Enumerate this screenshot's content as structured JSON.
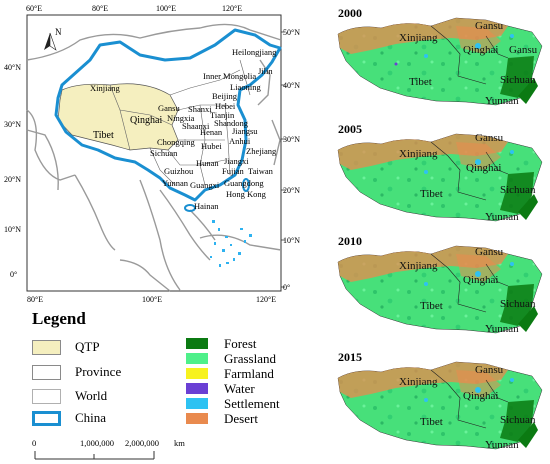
{
  "overview_map": {
    "top_ticks": [
      "60°E",
      "80°E",
      "100°E",
      "120°E"
    ],
    "bottom_ticks": [
      "80°E",
      "100°E",
      "120°E"
    ],
    "left_ticks": [
      "40°N",
      "30°N",
      "20°N",
      "10°N",
      "0°"
    ],
    "right_ticks": [
      "50°N",
      "40°N",
      "30°N",
      "20°N",
      "10°N",
      "0°"
    ],
    "north_label": "N",
    "province_labels": [
      "Heilongjiang",
      "Jilin",
      "Inner Mongolia",
      "Liaoning",
      "Xinjiang",
      "Beijing",
      "Hebei",
      "Gansu",
      "Shanxi",
      "Tianjin",
      "Shandong",
      "Qinghai",
      "Ningxia",
      "Shaanxi",
      "Henan",
      "Jiangsu",
      "Tibet",
      "Anhui",
      "Chongqing",
      "Hubei",
      "Sichuan",
      "Zhejiang",
      "Hunan",
      "Jiangxi",
      "Guizhou",
      "Fujian",
      "Taiwan",
      "Yunnan",
      "Guangxi",
      "Guangdong",
      "Hong Kong",
      "Hainan"
    ]
  },
  "legend": {
    "title": "Legend",
    "items": [
      {
        "label": "QTP",
        "color": "#f5efbf"
      },
      {
        "label": "Province",
        "color": "#ffffff"
      },
      {
        "label": "World",
        "color": "#ffffff"
      },
      {
        "label": "China",
        "color": "#1a8fd1"
      }
    ],
    "scale": {
      "zero": "0",
      "mid": "1,000,000",
      "end": "2,000,000",
      "unit": "km"
    }
  },
  "landcover": {
    "classes": [
      {
        "label": "Forest",
        "color": "#0b7a12"
      },
      {
        "label": "Grassland",
        "color": "#4ef08a"
      },
      {
        "label": "Farmland",
        "color": "#f7f21e"
      },
      {
        "label": "Water",
        "color": "#6a3fd4"
      },
      {
        "label": "Settlement",
        "color": "#2ec2f2"
      },
      {
        "label": "Desert",
        "color": "#e98a4e"
      }
    ]
  },
  "maps": [
    {
      "year": "2000",
      "labels": [
        "Xinjiang",
        "Gansu",
        "Qinghai",
        "Gansu",
        "Tibet",
        "Sichuan",
        "Yunnan"
      ]
    },
    {
      "year": "2005",
      "labels": [
        "Xinjiang",
        "Gansu",
        "Qinghai",
        "Tibet",
        "Sichuan",
        "Yunnan"
      ]
    },
    {
      "year": "2010",
      "labels": [
        "Xinjiang",
        "Gansu",
        "Qinghai",
        "Tibet",
        "Sichuan",
        "Yunnan"
      ]
    },
    {
      "year": "2015",
      "labels": [
        "Xinjiang",
        "Gansu",
        "Qinghai",
        "Tibet",
        "Sichuan",
        "Yunnan"
      ]
    }
  ]
}
